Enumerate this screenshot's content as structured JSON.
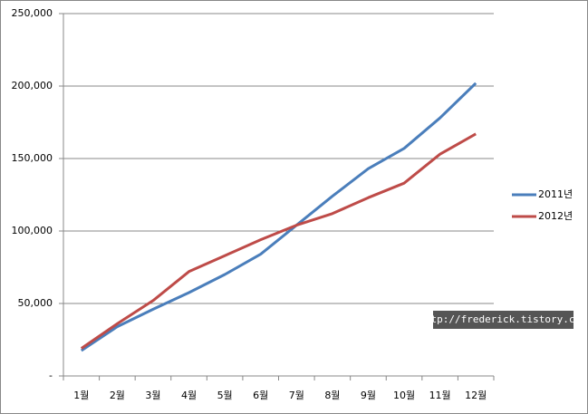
{
  "chart_data": {
    "type": "line",
    "categories": [
      "1월",
      "2월",
      "3월",
      "4월",
      "5월",
      "6월",
      "7월",
      "8월",
      "9월",
      "10월",
      "11월",
      "12월"
    ],
    "series": [
      {
        "name": "2011년",
        "color": "#4a7ebb",
        "values": [
          17500,
          34000,
          46000,
          57500,
          70000,
          84000,
          104000,
          124000,
          143000,
          157000,
          178000,
          202000
        ]
      },
      {
        "name": "2012년",
        "color": "#be4b48",
        "values": [
          19000,
          36000,
          52000,
          72000,
          83000,
          94000,
          104000,
          112000,
          123000,
          133000,
          153000,
          167000
        ]
      }
    ],
    "ylim": [
      0,
      250000
    ],
    "yticks": [
      {
        "value": 0,
        "label": "-"
      },
      {
        "value": 50000,
        "label": "50,000"
      },
      {
        "value": 100000,
        "label": "100,000"
      },
      {
        "value": 150000,
        "label": "150,000"
      },
      {
        "value": 200000,
        "label": "200,000"
      },
      {
        "value": 250000,
        "label": "250,000"
      }
    ],
    "grid": true,
    "legend": "right",
    "watermark": "http://frederick.tistory.com"
  }
}
